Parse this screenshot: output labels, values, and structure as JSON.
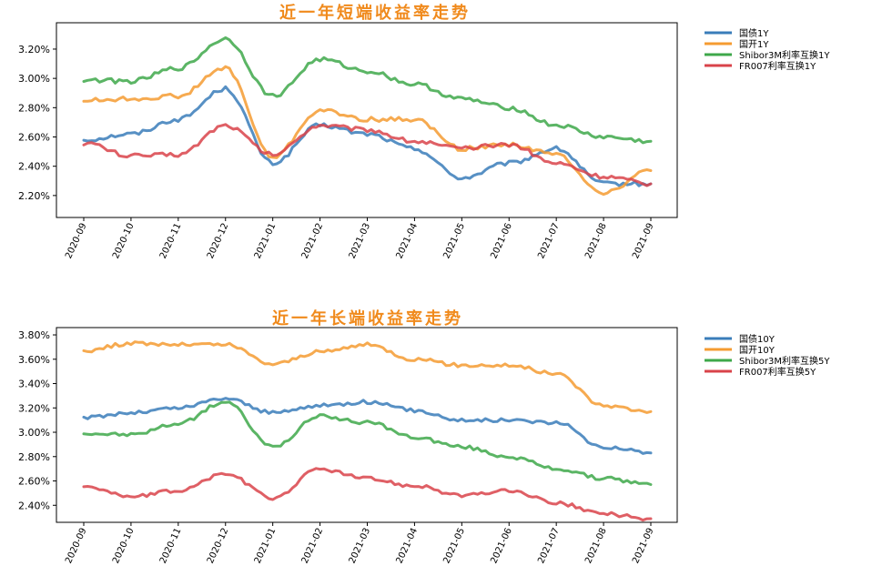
{
  "chart_data": [
    {
      "type": "line",
      "title": "近一年短端收益率走势",
      "x": [
        "2020-09",
        "2020-10",
        "2020-11",
        "2020-12",
        "2021-01",
        "2021-02",
        "2021-03",
        "2021-04",
        "2021-05",
        "2021-06",
        "2021-07",
        "2021-08",
        "2021-09"
      ],
      "y_ticks": [
        "2.20%",
        "2.40%",
        "2.60%",
        "2.80%",
        "3.00%",
        "3.20%"
      ],
      "ylim": [
        2.05,
        3.38
      ],
      "legend_position": "outside-right",
      "grid": false,
      "series": [
        {
          "name": "国债1Y",
          "color": "#3a7dba",
          "values": [
            2.58,
            2.62,
            2.72,
            2.93,
            2.42,
            2.68,
            2.62,
            2.52,
            2.32,
            2.42,
            2.52,
            2.28,
            2.28
          ]
        },
        {
          "name": "国开1Y",
          "color": "#f59b31",
          "values": [
            2.85,
            2.86,
            2.88,
            3.07,
            2.46,
            2.78,
            2.72,
            2.72,
            2.52,
            2.55,
            2.48,
            2.22,
            2.37
          ]
        },
        {
          "name": "Shibor3M利率互换1Y",
          "color": "#3ea84a",
          "values": [
            2.99,
            2.98,
            3.07,
            3.27,
            2.88,
            3.13,
            3.05,
            2.96,
            2.86,
            2.8,
            2.68,
            2.6,
            2.57
          ]
        },
        {
          "name": "FR007利率互换1Y",
          "color": "#d9434a",
          "values": [
            2.56,
            2.47,
            2.48,
            2.68,
            2.48,
            2.68,
            2.65,
            2.57,
            2.52,
            2.55,
            2.42,
            2.33,
            2.28
          ]
        }
      ]
    },
    {
      "type": "line",
      "title": "近一年长端收益率走势",
      "x": [
        "2020-09",
        "2020-10",
        "2020-11",
        "2020-12",
        "2021-01",
        "2021-02",
        "2021-03",
        "2021-04",
        "2021-05",
        "2021-06",
        "2021-07",
        "2021-08",
        "2021-09"
      ],
      "y_ticks": [
        "2.40%",
        "2.60%",
        "2.80%",
        "3.00%",
        "3.20%",
        "3.40%",
        "3.60%",
        "3.80%"
      ],
      "ylim": [
        2.26,
        3.86
      ],
      "legend_position": "outside-right",
      "grid": false,
      "series": [
        {
          "name": "国债10Y",
          "color": "#3a7dba",
          "values": [
            3.12,
            3.16,
            3.2,
            3.28,
            3.16,
            3.22,
            3.25,
            3.18,
            3.1,
            3.1,
            3.08,
            2.88,
            2.83
          ]
        },
        {
          "name": "国开10Y",
          "color": "#f59b31",
          "values": [
            3.67,
            3.73,
            3.72,
            3.72,
            3.56,
            3.66,
            3.72,
            3.6,
            3.55,
            3.55,
            3.48,
            3.22,
            3.17
          ]
        },
        {
          "name": "Shibor3M利率互换5Y",
          "color": "#3ea84a",
          "values": [
            2.99,
            2.98,
            3.07,
            3.25,
            2.88,
            3.13,
            3.08,
            2.96,
            2.88,
            2.8,
            2.7,
            2.62,
            2.57
          ]
        },
        {
          "name": "FR007利率互换5Y",
          "color": "#d9434a",
          "values": [
            2.56,
            2.47,
            2.52,
            2.66,
            2.46,
            2.7,
            2.62,
            2.56,
            2.48,
            2.52,
            2.42,
            2.33,
            2.29
          ]
        }
      ]
    }
  ]
}
